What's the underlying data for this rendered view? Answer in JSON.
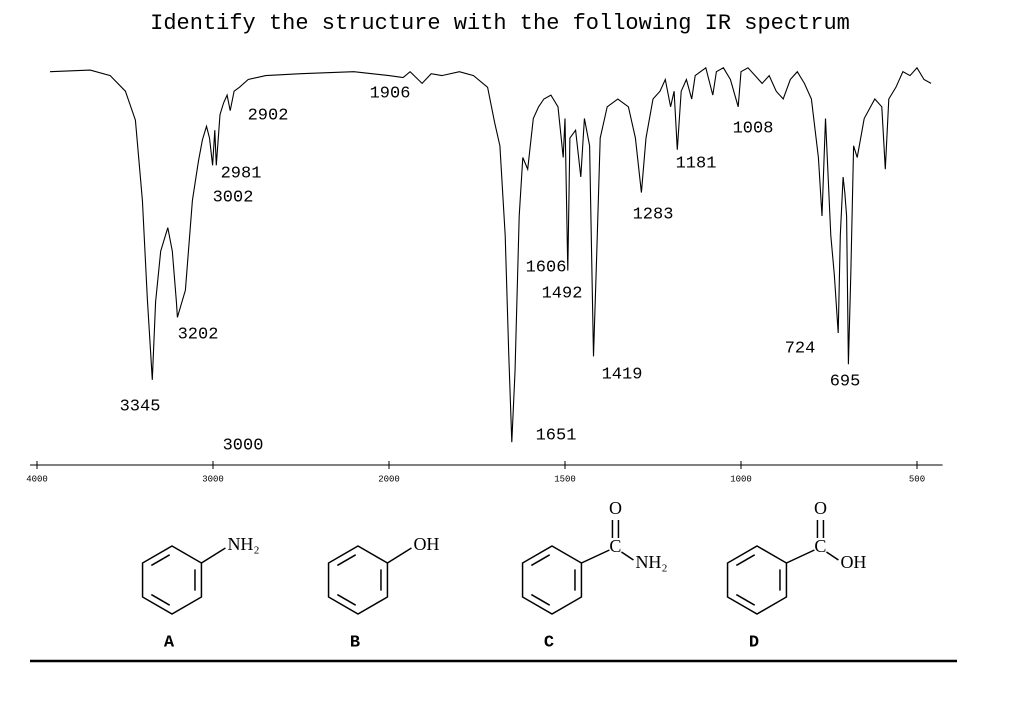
{
  "chart_data": {
    "type": "line",
    "title": "Identify the structure with the following IR spectrum",
    "x": [
      3926,
      3698,
      3584,
      3498,
      3441,
      3401,
      3373,
      3345,
      3326,
      3297,
      3257,
      3231,
      3208,
      3202,
      3157,
      3117,
      3083,
      3060,
      3037,
      3020,
      3002,
      2990,
      2981,
      2960,
      2940,
      2920,
      2902,
      2880,
      2850,
      2800,
      2700,
      2500,
      2200,
      2000,
      1960,
      1940,
      1906,
      1880,
      1850,
      1800,
      1760,
      1720,
      1700,
      1685,
      1670,
      1660,
      1651,
      1642,
      1630,
      1620,
      1606,
      1590,
      1575,
      1560,
      1540,
      1520,
      1505,
      1500,
      1492,
      1486,
      1470,
      1455,
      1445,
      1430,
      1419,
      1410,
      1400,
      1380,
      1350,
      1320,
      1300,
      1283,
      1270,
      1250,
      1230,
      1215,
      1200,
      1190,
      1181,
      1170,
      1155,
      1140,
      1130,
      1100,
      1080,
      1070,
      1050,
      1030,
      1008,
      1000,
      980,
      960,
      940,
      920,
      900,
      880,
      860,
      840,
      820,
      800,
      780,
      770,
      760,
      745,
      735,
      724,
      718,
      710,
      705,
      700,
      695,
      688,
      680,
      670,
      650,
      620,
      600,
      590,
      580,
      560,
      540,
      520,
      500,
      480,
      460
    ],
    "series": [
      {
        "color": "#000000",
        "values": [
          97,
          97.4,
          96,
          92,
          84.6,
          64,
          38.5,
          18,
          38,
          51,
          57,
          51,
          38,
          34,
          41,
          64,
          74,
          79.5,
          83,
          80,
          73,
          82,
          73,
          86,
          89,
          91,
          87,
          92,
          93,
          95,
          96,
          96.5,
          97,
          96,
          95.5,
          97,
          94,
          96.5,
          96,
          97,
          96,
          93,
          84,
          78,
          55,
          25,
          2,
          20,
          60,
          75,
          72,
          85,
          88,
          90,
          91,
          88,
          75,
          85,
          46,
          80,
          82,
          70,
          85,
          78,
          24,
          50,
          80,
          88,
          90,
          88,
          80,
          66,
          80,
          90,
          92,
          95,
          88,
          92,
          77,
          92,
          95,
          90,
          96,
          98,
          91,
          97,
          98,
          95,
          88,
          97,
          98,
          96,
          94,
          96,
          92,
          90,
          95,
          97,
          94,
          90,
          75,
          60,
          85,
          55,
          45,
          30,
          55,
          70,
          66,
          60,
          22,
          45,
          78,
          75,
          85,
          90,
          88,
          72,
          90,
          93,
          97,
          96,
          98,
          95,
          94
        ]
      }
    ],
    "xlim": [
      4000,
      450
    ],
    "xticks": [
      4000,
      3000,
      2000,
      1500,
      1000,
      500
    ],
    "ylim": [
      0,
      100
    ],
    "annotations": [
      "3345",
      "3202",
      "3000",
      "3002",
      "2981",
      "2902",
      "1906",
      "1651",
      "1606",
      "1492",
      "1419",
      "1283",
      "1181",
      "1008",
      "724",
      "695"
    ]
  },
  "structures": [
    {
      "letter": "A",
      "atoms": [
        "NH₂"
      ]
    },
    {
      "letter": "B",
      "atoms": [
        "OH"
      ]
    },
    {
      "letter": "C",
      "atoms": [
        "O",
        "C",
        "NH₂"
      ]
    },
    {
      "letter": "D",
      "atoms": [
        "O",
        "C",
        "OH"
      ]
    }
  ]
}
